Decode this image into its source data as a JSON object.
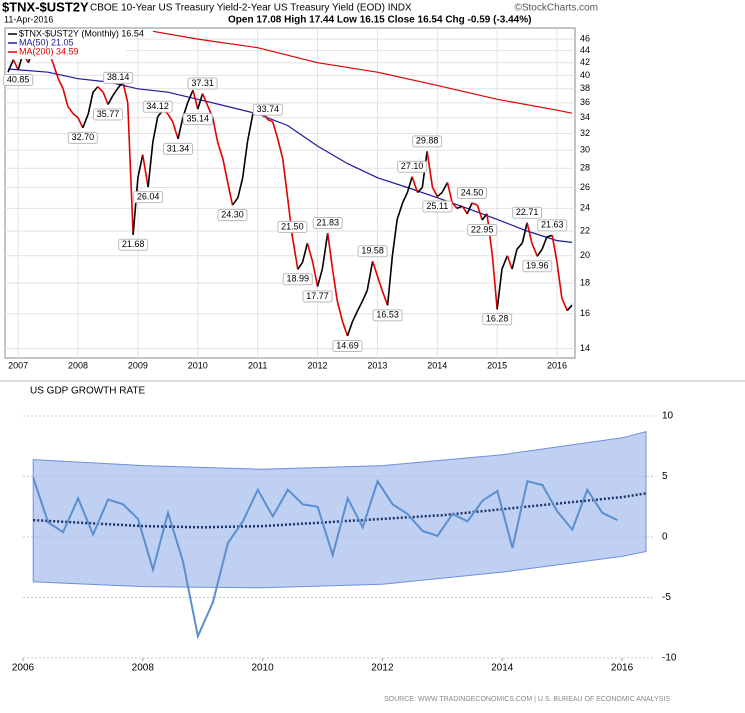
{
  "chart_data": [
    {
      "type": "line",
      "symbol": "$TNX-$UST2Y",
      "title": "CBOE 10-Year US Treasury Yield-2-Year US Treasury Yield (EOD) INDX",
      "brand": "©StockCharts.com",
      "date": "11-Apr-2016",
      "quote": "Open 17.08 High 17.44 Low 16.15 Close 16.54 Chg -0.59 (-3.44%)",
      "log_y": true,
      "grid": true,
      "legend": "top-left",
      "xlim": [
        2006.78,
        2016.3
      ],
      "xticks": [
        2007,
        2008,
        2009,
        2010,
        2011,
        2012,
        2013,
        2014,
        2015,
        2016
      ],
      "ylim": [
        13.5,
        48
      ],
      "yticks": [
        14,
        16,
        18,
        20,
        22,
        24,
        26,
        28,
        30,
        32,
        34,
        36,
        38,
        40,
        42,
        44,
        46
      ],
      "series": [
        {
          "name": "$TNX-$UST2Y (Monthly) 16.54",
          "color": "#000000",
          "down_color": "#e00000",
          "x": [
            2006.83,
            2006.92,
            2007,
            2007.08,
            2007.17,
            2007.25,
            2007.33,
            2007.42,
            2007.5,
            2007.58,
            2007.67,
            2007.75,
            2007.83,
            2007.92,
            2008,
            2008.08,
            2008.17,
            2008.25,
            2008.33,
            2008.42,
            2008.5,
            2008.58,
            2008.67,
            2008.75,
            2008.83,
            2008.92,
            2009,
            2009.08,
            2009.17,
            2009.25,
            2009.33,
            2009.42,
            2009.5,
            2009.58,
            2009.67,
            2009.75,
            2009.83,
            2009.92,
            2010,
            2010.08,
            2010.17,
            2010.25,
            2010.33,
            2010.42,
            2010.5,
            2010.58,
            2010.67,
            2010.75,
            2010.83,
            2010.92,
            2011,
            2011.08,
            2011.17,
            2011.25,
            2011.33,
            2011.42,
            2011.5,
            2011.58,
            2011.67,
            2011.75,
            2011.83,
            2011.92,
            2012,
            2012.08,
            2012.17,
            2012.25,
            2012.33,
            2012.42,
            2012.5,
            2012.58,
            2012.67,
            2012.75,
            2012.83,
            2012.92,
            2013,
            2013.08,
            2013.17,
            2013.25,
            2013.33,
            2013.42,
            2013.5,
            2013.58,
            2013.67,
            2013.75,
            2013.83,
            2013.92,
            2014,
            2014.08,
            2014.17,
            2014.25,
            2014.33,
            2014.42,
            2014.5,
            2014.58,
            2014.67,
            2014.75,
            2014.83,
            2014.92,
            2015,
            2015.08,
            2015.17,
            2015.25,
            2015.33,
            2015.42,
            2015.5,
            2015.58,
            2015.67,
            2015.75,
            2015.83,
            2015.92,
            2016,
            2016.08,
            2016.17,
            2016.25
          ],
          "values": [
            40.5,
            42.5,
            40.85,
            43.5,
            42,
            44.5,
            45.5,
            43,
            44,
            42,
            39.5,
            38,
            35.5,
            34.5,
            34,
            32.7,
            34.5,
            37.5,
            38.3,
            37.5,
            35.77,
            37,
            38.14,
            39,
            36,
            21.68,
            27,
            29.5,
            26.04,
            31,
            34.12,
            35,
            34.5,
            33.5,
            31.34,
            34,
            36,
            37.8,
            35.14,
            37.31,
            35.5,
            34,
            31,
            29,
            26.5,
            24.3,
            25,
            27,
            31,
            34.5,
            34.8,
            35,
            33.74,
            33.5,
            31.5,
            29,
            25,
            21.5,
            18.99,
            19.5,
            21,
            19.5,
            17.77,
            19,
            21.83,
            19,
            16.8,
            15.5,
            14.69,
            15.5,
            16.2,
            16.8,
            17.5,
            19.58,
            18.5,
            17.5,
            16.53,
            20,
            23,
            24.5,
            25.5,
            27.1,
            25.5,
            26,
            29.88,
            26,
            25.11,
            25.5,
            26.5,
            24.5,
            24,
            24.2,
            23.5,
            24.5,
            24.3,
            22.95,
            23.5,
            20,
            16.28,
            19,
            20,
            19,
            20.5,
            21,
            22.71,
            21,
            19.96,
            20.5,
            21.5,
            21.63,
            19.5,
            17,
            16.2,
            16.54
          ],
          "value_labels": [
            null,
            null,
            "40.85",
            null,
            null,
            null,
            null,
            null,
            null,
            null,
            null,
            null,
            null,
            null,
            null,
            "32.70",
            null,
            null,
            null,
            null,
            "35.77",
            null,
            "38.14",
            null,
            null,
            "21.68",
            null,
            null,
            "26.04",
            null,
            "34.12",
            null,
            null,
            null,
            "31.34",
            null,
            null,
            null,
            "35.14",
            "37.31",
            null,
            null,
            null,
            null,
            null,
            "24.30",
            null,
            null,
            null,
            null,
            null,
            null,
            "33.74",
            null,
            null,
            null,
            null,
            "21.50",
            "18.99",
            null,
            null,
            null,
            "17.77",
            null,
            "21.83",
            null,
            null,
            null,
            "14.69",
            null,
            null,
            null,
            null,
            "19.58",
            null,
            null,
            "16.53",
            null,
            null,
            null,
            null,
            "27.10",
            null,
            null,
            "29.88",
            null,
            "25.11",
            null,
            null,
            null,
            null,
            null,
            null,
            "24.50",
            null,
            "22.95",
            null,
            null,
            "16.28",
            null,
            null,
            null,
            null,
            null,
            "22.71",
            null,
            "19.96",
            null,
            null,
            "21.63",
            null,
            null,
            null,
            null
          ]
        },
        {
          "name": "MA(50) 21.05",
          "color": "#1a1aa0",
          "x": [
            2006.83,
            2007.5,
            2008,
            2008.5,
            2009,
            2009.5,
            2010,
            2010.5,
            2011,
            2011.5,
            2012,
            2012.5,
            2013,
            2013.5,
            2014,
            2014.5,
            2015,
            2015.5,
            2016,
            2016.25
          ],
          "values": [
            41,
            40.5,
            39.5,
            39,
            38,
            37.5,
            36.5,
            35.5,
            34.5,
            33,
            30.5,
            28.5,
            27,
            26,
            25,
            24,
            23,
            22,
            21.2,
            21.05
          ]
        },
        {
          "name": "MA(200) 34.59",
          "color": "#e00000",
          "x": [
            2009.25,
            2010,
            2011,
            2012,
            2013,
            2014,
            2015,
            2016,
            2016.25
          ],
          "values": [
            47.4,
            46,
            44.5,
            42,
            40.5,
            38.5,
            36.5,
            35,
            34.59
          ]
        }
      ]
    },
    {
      "type": "line",
      "title": "US GDP GROWTH RATE",
      "source": "SOURCE: WWW.TRADINGECONOMICS.COM | U.S. BUREAU OF ECONOMIC ANALYSIS",
      "grid": true,
      "xlim": [
        2006,
        2016.55
      ],
      "xticks": [
        2006,
        2008,
        2010,
        2012,
        2014,
        2016
      ],
      "ylim": [
        -10,
        10
      ],
      "yticks": [
        -10,
        -5,
        0,
        5,
        10
      ],
      "color": "#5b8fd0",
      "x": [
        2006.17,
        2006.42,
        2006.67,
        2006.92,
        2007.17,
        2007.42,
        2007.67,
        2007.92,
        2008.17,
        2008.42,
        2008.67,
        2008.92,
        2009.17,
        2009.42,
        2009.67,
        2009.92,
        2010.17,
        2010.42,
        2010.67,
        2010.92,
        2011.17,
        2011.42,
        2011.67,
        2011.92,
        2012.17,
        2012.42,
        2012.67,
        2012.92,
        2013.17,
        2013.42,
        2013.67,
        2013.92,
        2014.17,
        2014.42,
        2014.67,
        2014.92,
        2015.17,
        2015.42,
        2015.67,
        2015.92
      ],
      "values": [
        4.9,
        1.2,
        0.4,
        3.2,
        0.2,
        3.1,
        2.7,
        1.5,
        -2.7,
        2.0,
        -2.0,
        -8.2,
        -5.4,
        -0.5,
        1.3,
        3.9,
        1.7,
        3.9,
        2.7,
        2.5,
        -1.5,
        3.2,
        0.8,
        4.6,
        2.7,
        1.9,
        0.5,
        0.1,
        1.9,
        1.3,
        3.0,
        3.8,
        -0.9,
        4.6,
        4.3,
        2.1,
        0.6,
        3.9,
        2.0,
        1.4
      ],
      "trend": {
        "color": "#1f3466",
        "x": [
          2006.17,
          2008,
          2009,
          2010,
          2011,
          2012,
          2013,
          2014,
          2015,
          2016,
          2016.4
        ],
        "values": [
          1.4,
          0.9,
          0.8,
          0.9,
          1.2,
          1.5,
          1.8,
          2.3,
          2.8,
          3.3,
          3.6
        ]
      },
      "band": {
        "color": "#a9c0ef",
        "x": [
          2006.17,
          2008,
          2010,
          2012,
          2014,
          2016,
          2016.4
        ],
        "upper": [
          6.4,
          5.9,
          5.6,
          5.9,
          6.8,
          8.2,
          8.7
        ],
        "lower": [
          -3.7,
          -4.1,
          -4.2,
          -3.9,
          -2.9,
          -1.6,
          -1.2
        ]
      }
    }
  ]
}
